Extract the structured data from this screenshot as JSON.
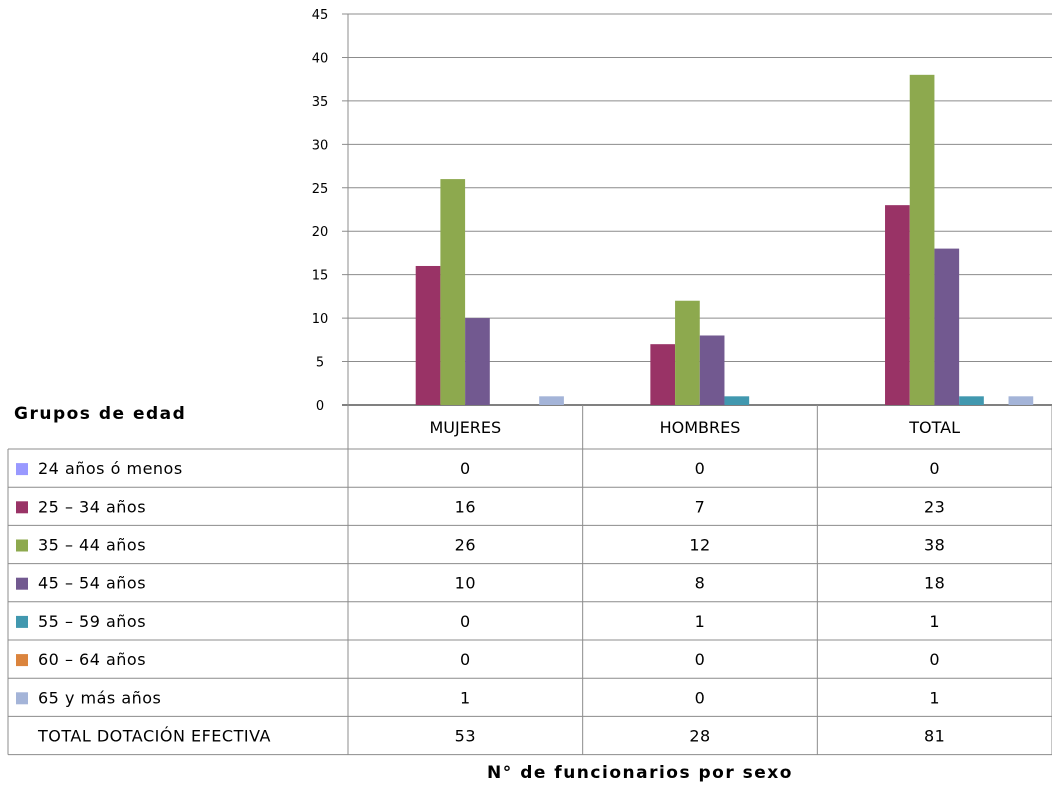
{
  "chart_data": {
    "type": "bar",
    "categories": [
      "MUJERES",
      "HOMBRES",
      "TOTAL"
    ],
    "series": [
      {
        "name": "24 años ó menos",
        "color": "#9999ff",
        "values": [
          0,
          0,
          0
        ]
      },
      {
        "name": "25 – 34 años",
        "color": "#993366",
        "values": [
          16,
          7,
          23
        ]
      },
      {
        "name": "35 – 44 años",
        "color": "#8da94e",
        "values": [
          26,
          12,
          38
        ]
      },
      {
        "name": "45 – 54 años",
        "color": "#725990",
        "values": [
          10,
          8,
          18
        ]
      },
      {
        "name": "55 – 59 años",
        "color": "#4198af",
        "values": [
          0,
          1,
          1
        ]
      },
      {
        "name": "60 – 64 años",
        "color": "#db843d",
        "values": [
          0,
          0,
          0
        ]
      },
      {
        "name": " 65 y más años",
        "color": "#a4b4d8",
        "values": [
          1,
          0,
          1
        ]
      }
    ],
    "total_row": {
      "label": "TOTAL DOTACIÓN EFECTIVA",
      "values": [
        "53",
        "28",
        "81"
      ]
    },
    "ylim": [
      0,
      45
    ],
    "yticks": [
      "0",
      "5",
      "10",
      "15",
      "20",
      "25",
      "30",
      "35",
      "40",
      "45"
    ],
    "ylabel": "Grupos de edad",
    "xlabel": "N° de funcionarios por sexo",
    "grid": true,
    "legend": "data-table-left"
  }
}
